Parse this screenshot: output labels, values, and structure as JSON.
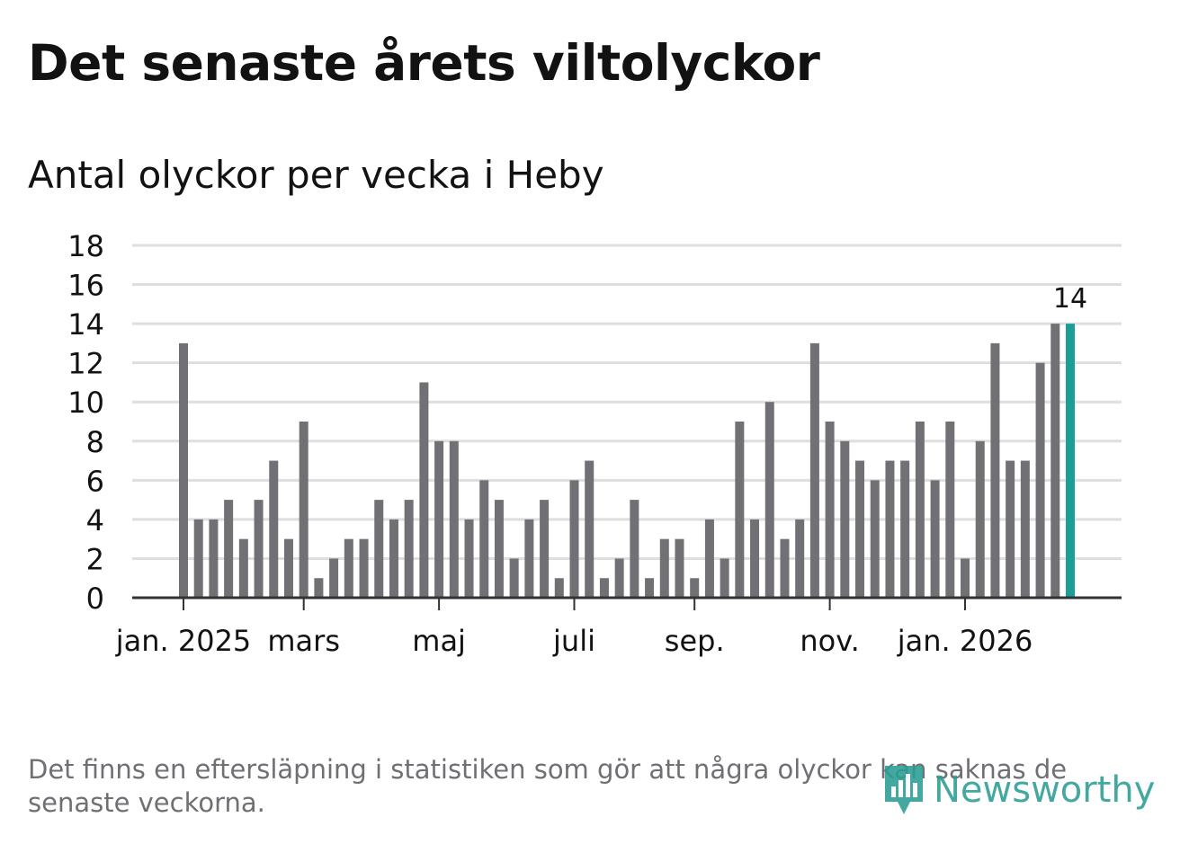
{
  "header": {
    "title": "Det senaste årets viltolyckor",
    "subtitle": "Antal olyckor per vecka i Heby"
  },
  "footer": {
    "note": "Det finns en eftersläpning i statistiken som gör att några olyckor kan saknas de senaste veckorna.",
    "brand": "Newsworthy",
    "brand_icon": "bar-chart-icon"
  },
  "colors": {
    "bar": "#707075",
    "highlight": "#1a9e96",
    "grid": "#dedede",
    "axis": "#333333",
    "text": "#121212",
    "brand": "#2a9d93"
  },
  "chart_data": {
    "type": "bar",
    "unit": "weekly",
    "x": [
      "2025-01-06",
      "2025-01-13",
      "2025-01-20",
      "2025-01-27",
      "2025-02-03",
      "2025-02-10",
      "2025-02-17",
      "2025-02-24",
      "2025-03-03",
      "2025-03-10",
      "2025-03-17",
      "2025-03-24",
      "2025-03-31",
      "2025-04-07",
      "2025-04-14",
      "2025-04-21",
      "2025-04-28",
      "2025-05-05",
      "2025-05-12",
      "2025-05-19",
      "2025-05-26",
      "2025-06-02",
      "2025-06-09",
      "2025-06-16",
      "2025-06-23",
      "2025-06-30",
      "2025-07-07",
      "2025-07-14",
      "2025-07-21",
      "2025-07-28",
      "2025-08-04",
      "2025-08-11",
      "2025-08-18",
      "2025-08-25",
      "2025-09-01",
      "2025-09-08",
      "2025-09-15",
      "2025-09-22",
      "2025-09-29",
      "2025-10-06",
      "2025-10-13",
      "2025-10-20",
      "2025-10-27",
      "2025-11-03",
      "2025-11-10",
      "2025-11-17",
      "2025-11-24",
      "2025-12-01",
      "2025-12-08",
      "2025-12-15",
      "2025-12-22",
      "2025-12-29",
      "2026-01-05",
      "2026-01-12",
      "2026-01-19",
      "2026-01-26",
      "2026-02-02",
      "2026-02-09",
      "2026-02-16",
      "2026-02-23"
    ],
    "values": [
      13,
      4,
      4,
      5,
      3,
      5,
      7,
      3,
      9,
      1,
      2,
      3,
      3,
      5,
      4,
      5,
      11,
      8,
      8,
      4,
      6,
      5,
      2,
      4,
      5,
      1,
      6,
      7,
      1,
      2,
      5,
      1,
      3,
      3,
      1,
      4,
      2,
      9,
      4,
      10,
      3,
      4,
      13,
      9,
      8,
      7,
      6,
      7,
      7,
      9,
      6,
      9,
      2,
      8,
      13,
      7,
      7,
      12,
      14,
      14
    ],
    "highlight": {
      "index": 59,
      "label": "14"
    },
    "x_ticks": [
      {
        "date": "2025-01-06",
        "label": "jan. 2025"
      },
      {
        "date": "2025-03-03",
        "label": "mars"
      },
      {
        "date": "2025-05-05",
        "label": "maj"
      },
      {
        "date": "2025-07-07",
        "label": "juli"
      },
      {
        "date": "2025-09-01",
        "label": "sep."
      },
      {
        "date": "2025-11-03",
        "label": "nov."
      },
      {
        "date": "2026-01-05",
        "label": "jan. 2026"
      }
    ],
    "y_ticks": [
      0,
      2,
      4,
      6,
      8,
      10,
      12,
      14,
      16,
      18
    ],
    "ylim": [
      0,
      18
    ],
    "xlabel": "",
    "ylabel": "",
    "grid": true,
    "legend": "none"
  }
}
